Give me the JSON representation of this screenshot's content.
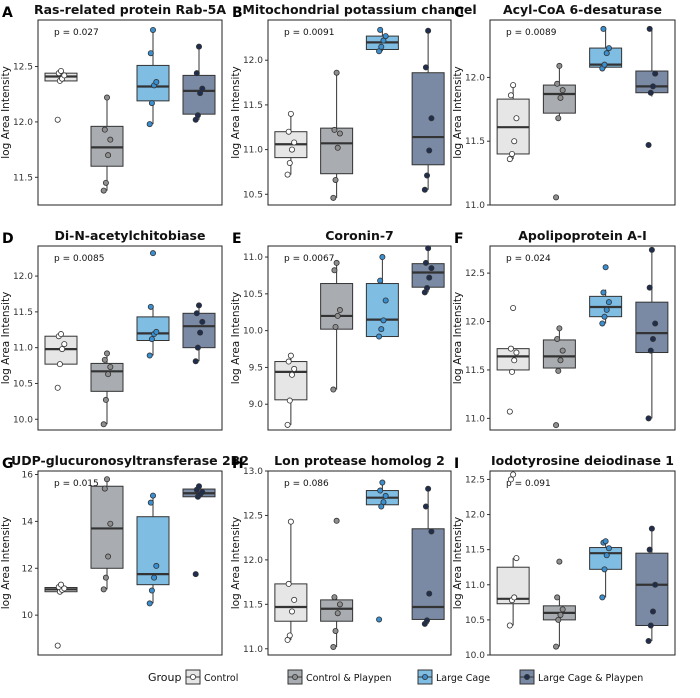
{
  "group_colors": {
    "Control": "#e6e6e6",
    "Control & Playpen": "#a9adb1",
    "Large Cage": "#7fbde3",
    "Large Cage & Playpen": "#7a8aa4"
  },
  "point_colors": {
    "Control": "#ffffff",
    "Control & Playpen": "#8f8f8f",
    "Large Cage": "#3a8fd0",
    "Large Cage & Playpen": "#1f2e4f"
  },
  "legend": {
    "title": "Group",
    "items": [
      "Control",
      "Control & Playpen",
      "Large Cage",
      "Large Cage & Playpen"
    ]
  },
  "chart_data": [
    {
      "letter": "A",
      "type": "boxplot",
      "title": "Ras-related protein Rab-5A",
      "ylabel": "log Area Intensity",
      "pvalue": "p = 0.027",
      "ylim": [
        11.25,
        12.92
      ],
      "yticks": [
        11.5,
        12.0,
        12.5
      ],
      "groups": [
        {
          "name": "Control",
          "whisker_low": 12.37,
          "q1": 12.37,
          "median": 12.41,
          "q3": 12.44,
          "whisker_high": 12.46,
          "points": [
            12.02,
            12.37,
            12.39,
            12.42,
            12.44,
            12.46
          ]
        },
        {
          "name": "Control & Playpen",
          "whisker_low": 11.38,
          "q1": 11.6,
          "median": 11.77,
          "q3": 11.96,
          "whisker_high": 12.22,
          "points": [
            11.38,
            11.45,
            11.7,
            11.84,
            11.93,
            12.22
          ]
        },
        {
          "name": "Large Cage",
          "whisker_low": 11.98,
          "q1": 12.19,
          "median": 12.32,
          "q3": 12.51,
          "whisker_high": 12.83,
          "points": [
            11.98,
            12.17,
            12.33,
            12.36,
            12.62,
            12.83
          ]
        },
        {
          "name": "Large Cage & Playpen",
          "whisker_low": 12.02,
          "q1": 12.07,
          "median": 12.28,
          "q3": 12.42,
          "whisker_high": 12.68,
          "points": [
            12.02,
            12.06,
            12.26,
            12.3,
            12.44,
            12.68
          ]
        }
      ]
    },
    {
      "letter": "B",
      "type": "boxplot",
      "title": "Mitochondrial potassium channel",
      "ylabel": "log Area Intensity",
      "pvalue": "p = 0.0091",
      "ylim": [
        10.38,
        12.45
      ],
      "yticks": [
        10.5,
        11.0,
        11.5,
        12.0
      ],
      "groups": [
        {
          "name": "Control",
          "whisker_low": 10.72,
          "q1": 10.91,
          "median": 11.06,
          "q3": 11.2,
          "whisker_high": 11.4,
          "points": [
            10.72,
            10.85,
            11.0,
            11.08,
            11.2,
            11.4
          ]
        },
        {
          "name": "Control & Playpen",
          "whisker_low": 10.46,
          "q1": 10.73,
          "median": 11.07,
          "q3": 11.24,
          "whisker_high": 11.86,
          "points": [
            10.46,
            10.66,
            11.02,
            11.18,
            11.22,
            11.86
          ]
        },
        {
          "name": "Large Cage",
          "whisker_low": 12.1,
          "q1": 12.12,
          "median": 12.2,
          "q3": 12.27,
          "whisker_high": 12.34,
          "points": [
            12.1,
            12.15,
            12.22,
            12.27,
            12.34
          ]
        },
        {
          "name": "Large Cage & Playpen",
          "whisker_low": 10.55,
          "q1": 10.83,
          "median": 11.14,
          "q3": 11.86,
          "whisker_high": 12.33,
          "points": [
            10.55,
            10.71,
            10.99,
            11.35,
            11.92,
            12.33
          ]
        }
      ]
    },
    {
      "letter": "C",
      "type": "boxplot",
      "title": "Acyl-CoA 6-desaturase",
      "ylabel": "log Area Intensity",
      "pvalue": "p = 0.0089",
      "ylim": [
        11.0,
        12.45
      ],
      "yticks": [
        11.0,
        11.5,
        12.0
      ],
      "groups": [
        {
          "name": "Control",
          "whisker_low": 11.36,
          "q1": 11.4,
          "median": 11.61,
          "q3": 11.83,
          "whisker_high": 11.94,
          "points": [
            11.36,
            11.4,
            11.5,
            11.68,
            11.86,
            11.94
          ]
        },
        {
          "name": "Control & Playpen",
          "whisker_low": 11.68,
          "q1": 11.72,
          "median": 11.87,
          "q3": 11.94,
          "whisker_high": 12.09,
          "points": [
            11.06,
            11.68,
            11.84,
            11.9,
            11.95,
            12.09
          ]
        },
        {
          "name": "Large Cage",
          "whisker_low": 12.07,
          "q1": 12.08,
          "median": 12.1,
          "q3": 12.23,
          "whisker_high": 12.38,
          "points": [
            12.07,
            12.1,
            12.19,
            12.23,
            12.38
          ]
        },
        {
          "name": "Large Cage & Playpen",
          "whisker_low": 11.85,
          "q1": 11.88,
          "median": 11.93,
          "q3": 12.05,
          "whisker_high": 12.38,
          "points": [
            11.47,
            11.88,
            11.93,
            12.03,
            12.38
          ]
        }
      ]
    },
    {
      "letter": "D",
      "type": "boxplot",
      "title": "Di-N-acetylchitobiase",
      "ylabel": "log Area Intensity",
      "pvalue": "p = 0.0085",
      "ylim": [
        9.85,
        12.42
      ],
      "yticks": [
        10.0,
        10.5,
        11.0,
        11.5,
        12.0
      ],
      "groups": [
        {
          "name": "Control",
          "whisker_low": 10.77,
          "q1": 10.77,
          "median": 10.98,
          "q3": 11.16,
          "whisker_high": 11.19,
          "points": [
            10.44,
            10.77,
            10.98,
            11.05,
            11.16,
            11.19
          ]
        },
        {
          "name": "Control & Playpen",
          "whisker_low": 9.93,
          "q1": 10.39,
          "median": 10.67,
          "q3": 10.78,
          "whisker_high": 10.92,
          "points": [
            9.93,
            10.27,
            10.63,
            10.73,
            10.83,
            10.92
          ]
        },
        {
          "name": "Large Cage",
          "whisker_low": 10.89,
          "q1": 11.1,
          "median": 11.2,
          "q3": 11.43,
          "whisker_high": 11.58,
          "points": [
            10.89,
            11.12,
            11.19,
            11.22,
            11.57,
            12.32
          ]
        },
        {
          "name": "Large Cage & Playpen",
          "whisker_low": 10.81,
          "q1": 11.0,
          "median": 11.3,
          "q3": 11.48,
          "whisker_high": 11.59,
          "points": [
            10.81,
            11.0,
            11.21,
            11.36,
            11.48,
            11.59
          ]
        }
      ]
    },
    {
      "letter": "E",
      "type": "boxplot",
      "title": "Coronin-7",
      "ylabel": "log Area Intensity",
      "pvalue": "p = 0.0067",
      "ylim": [
        8.65,
        11.15
      ],
      "yticks": [
        9.0,
        9.5,
        10.0,
        10.5,
        11.0
      ],
      "groups": [
        {
          "name": "Control",
          "whisker_low": 8.72,
          "q1": 9.06,
          "median": 9.44,
          "q3": 9.58,
          "whisker_high": 9.66,
          "points": [
            8.72,
            9.05,
            9.4,
            9.48,
            9.58,
            9.66
          ]
        },
        {
          "name": "Control & Playpen",
          "whisker_low": 9.2,
          "q1": 10.02,
          "median": 10.2,
          "q3": 10.64,
          "whisker_high": 10.92,
          "points": [
            9.2,
            10.05,
            10.2,
            10.28,
            10.82,
            10.92
          ]
        },
        {
          "name": "Large Cage",
          "whisker_low": 9.92,
          "q1": 9.92,
          "median": 10.15,
          "q3": 10.64,
          "whisker_high": 11.0,
          "points": [
            9.92,
            10.02,
            10.14,
            10.41,
            10.68,
            11.0
          ]
        },
        {
          "name": "Large Cage & Playpen",
          "whisker_low": 10.52,
          "q1": 10.59,
          "median": 10.79,
          "q3": 10.91,
          "whisker_high": 11.12,
          "points": [
            10.52,
            10.58,
            10.72,
            10.85,
            10.92,
            11.12
          ]
        }
      ]
    },
    {
      "letter": "F",
      "type": "boxplot",
      "title": "Apolipoprotein A-I",
      "ylabel": "log Area Intensity",
      "pvalue": "p = 0.024",
      "ylim": [
        10.88,
        12.78
      ],
      "yticks": [
        11.0,
        11.5,
        12.0,
        12.5
      ],
      "groups": [
        {
          "name": "Control",
          "whisker_low": 11.48,
          "q1": 11.5,
          "median": 11.64,
          "q3": 11.72,
          "whisker_high": 11.74,
          "points": [
            11.07,
            11.48,
            11.6,
            11.68,
            11.72,
            12.14
          ]
        },
        {
          "name": "Control & Playpen",
          "whisker_low": 11.48,
          "q1": 11.52,
          "median": 11.64,
          "q3": 11.81,
          "whisker_high": 11.93,
          "points": [
            10.93,
            11.49,
            11.6,
            11.7,
            11.82,
            11.93
          ]
        },
        {
          "name": "Large Cage",
          "whisker_low": 11.98,
          "q1": 12.05,
          "median": 12.15,
          "q3": 12.26,
          "whisker_high": 12.33,
          "points": [
            11.98,
            12.05,
            12.12,
            12.2,
            12.3,
            12.56
          ]
        },
        {
          "name": "Large Cage & Playpen",
          "whisker_low": 11.0,
          "q1": 11.68,
          "median": 11.88,
          "q3": 12.2,
          "whisker_high": 12.74,
          "points": [
            11.0,
            11.7,
            11.82,
            11.98,
            12.35,
            12.74
          ]
        }
      ]
    },
    {
      "letter": "G",
      "type": "boxplot",
      "title": "UDP-glucuronosyltransferase 2B2",
      "ylabel": "log Area Intensity",
      "pvalue": "p = 0.015",
      "ylim": [
        8.3,
        16.15
      ],
      "yticks": [
        10,
        12,
        14,
        16
      ],
      "groups": [
        {
          "name": "Control",
          "whisker_low": 11.0,
          "q1": 11.0,
          "median": 11.1,
          "q3": 11.18,
          "whisker_high": 11.3,
          "points": [
            8.7,
            11.0,
            11.08,
            11.14,
            11.2,
            11.3
          ]
        },
        {
          "name": "Control & Playpen",
          "whisker_low": 11.1,
          "q1": 12.0,
          "median": 13.7,
          "q3": 15.5,
          "whisker_high": 15.8,
          "points": [
            11.1,
            11.6,
            12.5,
            13.9,
            15.4,
            15.8
          ]
        },
        {
          "name": "Large Cage",
          "whisker_low": 10.5,
          "q1": 11.3,
          "median": 11.75,
          "q3": 14.2,
          "whisker_high": 15.1,
          "points": [
            10.5,
            11.05,
            11.6,
            12.1,
            14.8,
            15.1
          ]
        },
        {
          "name": "Large Cage & Playpen",
          "whisker_low": 14.95,
          "q1": 15.05,
          "median": 15.2,
          "q3": 15.38,
          "whisker_high": 15.5,
          "points": [
            11.75,
            15.05,
            15.15,
            15.25,
            15.35,
            15.5
          ]
        }
      ]
    },
    {
      "letter": "H",
      "type": "boxplot",
      "title": "Lon protease homolog 2",
      "ylabel": "log Area Intensity",
      "pvalue": "p = 0.086",
      "ylim": [
        10.93,
        13.0
      ],
      "yticks": [
        11.0,
        11.5,
        12.0,
        12.5,
        13.0
      ],
      "groups": [
        {
          "name": "Control",
          "whisker_low": 11.1,
          "q1": 11.31,
          "median": 11.47,
          "q3": 11.73,
          "whisker_high": 12.43,
          "points": [
            11.1,
            11.15,
            11.42,
            11.55,
            11.73,
            12.43
          ]
        },
        {
          "name": "Control & Playpen",
          "whisker_low": 11.02,
          "q1": 11.31,
          "median": 11.45,
          "q3": 11.55,
          "whisker_high": 11.58,
          "points": [
            11.02,
            11.2,
            11.4,
            11.5,
            11.58,
            12.44
          ]
        },
        {
          "name": "Large Cage",
          "whisker_low": 12.58,
          "q1": 12.62,
          "median": 12.7,
          "q3": 12.78,
          "whisker_high": 12.87,
          "points": [
            11.33,
            12.6,
            12.65,
            12.72,
            12.78,
            12.87
          ]
        },
        {
          "name": "Large Cage & Playpen",
          "whisker_low": 11.28,
          "q1": 11.33,
          "median": 11.47,
          "q3": 12.35,
          "whisker_high": 12.8,
          "points": [
            11.28,
            11.32,
            11.62,
            12.32,
            12.6,
            12.8
          ]
        }
      ]
    },
    {
      "letter": "I",
      "type": "boxplot",
      "title": "Iodotyrosine deiodinase 1",
      "ylabel": "log Area Intensity",
      "pvalue": "p = 0.091",
      "ylim": [
        10.0,
        12.62
      ],
      "yticks": [
        10.0,
        10.5,
        11.0,
        11.5,
        12.0,
        12.5
      ],
      "groups": [
        {
          "name": "Control",
          "whisker_low": 10.42,
          "q1": 10.73,
          "median": 10.8,
          "q3": 11.25,
          "whisker_high": 11.38,
          "points": [
            10.42,
            10.78,
            10.82,
            11.38,
            12.5,
            12.57
          ]
        },
        {
          "name": "Control & Playpen",
          "whisker_low": 10.12,
          "q1": 10.5,
          "median": 10.6,
          "q3": 10.7,
          "whisker_high": 10.82,
          "points": [
            10.12,
            10.5,
            10.57,
            10.65,
            10.82,
            11.33
          ]
        },
        {
          "name": "Large Cage",
          "whisker_low": 10.82,
          "q1": 11.22,
          "median": 11.45,
          "q3": 11.53,
          "whisker_high": 11.62,
          "points": [
            10.82,
            11.22,
            11.42,
            11.52,
            11.6,
            11.62
          ]
        },
        {
          "name": "Large Cage & Playpen",
          "whisker_low": 10.2,
          "q1": 10.42,
          "median": 11.0,
          "q3": 11.45,
          "whisker_high": 11.8,
          "points": [
            10.2,
            10.42,
            10.62,
            11.0,
            11.5,
            11.8
          ]
        }
      ]
    }
  ]
}
